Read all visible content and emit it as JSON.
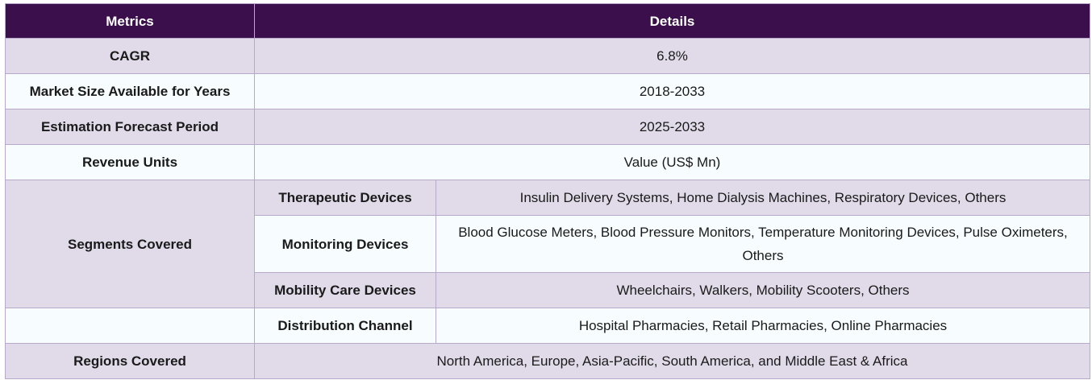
{
  "header": {
    "col1": "Metrics",
    "col2": "Details"
  },
  "rows": [
    {
      "label": "CAGR",
      "value": "6.8%"
    },
    {
      "label": "Market Size Available for Years",
      "value": "2018-2033"
    },
    {
      "label": "Estimation Forecast Period",
      "value": "2025-2033"
    },
    {
      "label": "Revenue Units",
      "value": "Value (US$ Mn)"
    }
  ],
  "segments": {
    "label": "Segments Covered",
    "items": [
      {
        "name": "Therapeutic Devices",
        "value": "Insulin Delivery Systems, Home Dialysis Machines, Respiratory Devices, Others"
      },
      {
        "name": "Monitoring Devices",
        "value": "Blood Glucose Meters, Blood Pressure Monitors, Temperature Monitoring Devices, Pulse Oximeters, Others"
      },
      {
        "name": "Mobility Care Devices",
        "value": "Wheelchairs, Walkers, Mobility Scooters, Others"
      },
      {
        "name": "Distribution Channel",
        "value": "Hospital Pharmacies, Retail Pharmacies, Online Pharmacies"
      }
    ]
  },
  "regions": {
    "label": "Regions Covered",
    "value": "North America, Europe, Asia-Pacific, South America, and Middle East & Africa"
  }
}
